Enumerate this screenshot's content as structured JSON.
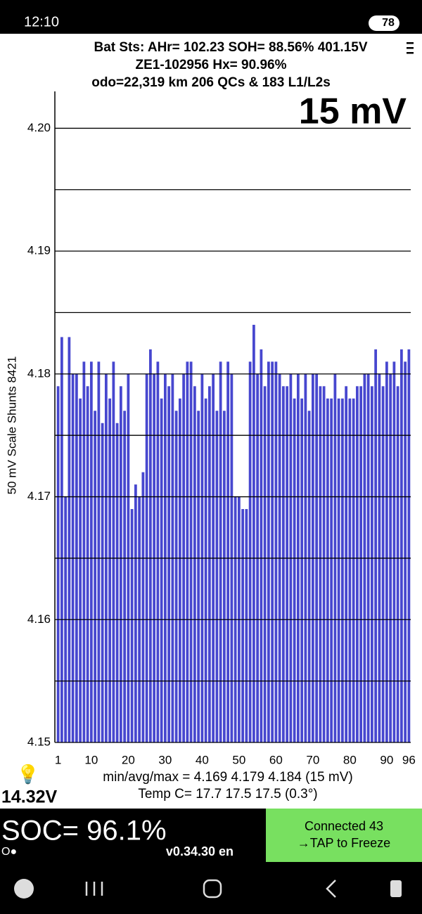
{
  "status_bar": {
    "time": "12:10",
    "battery": "78"
  },
  "header": {
    "line1": "Bat Sts:  AHr= 102.23  SOH= 88.56%   401.15V",
    "line2": "ZE1-102956   Hx= 90.96%",
    "line3": "odo=22,319 km  206 QCs & 183 L1/L2s"
  },
  "chart_data": {
    "type": "bar",
    "annotation": "15 mV",
    "y_label": "50 mV Scale   Shunts 8421",
    "color": "#4747cf",
    "grid": true,
    "x": [
      1,
      2,
      3,
      4,
      5,
      6,
      7,
      8,
      9,
      10,
      11,
      12,
      13,
      14,
      15,
      16,
      17,
      18,
      19,
      20,
      21,
      22,
      23,
      24,
      25,
      26,
      27,
      28,
      29,
      30,
      31,
      32,
      33,
      34,
      35,
      36,
      37,
      38,
      39,
      40,
      41,
      42,
      43,
      44,
      45,
      46,
      47,
      48,
      49,
      50,
      51,
      52,
      53,
      54,
      55,
      56,
      57,
      58,
      59,
      60,
      61,
      62,
      63,
      64,
      65,
      66,
      67,
      68,
      69,
      70,
      71,
      72,
      73,
      74,
      75,
      76,
      77,
      78,
      79,
      80,
      81,
      82,
      83,
      84,
      85,
      86,
      87,
      88,
      89,
      90,
      91,
      92,
      93,
      94,
      95,
      96
    ],
    "values": [
      4.179,
      4.183,
      4.17,
      4.183,
      4.18,
      4.18,
      4.178,
      4.181,
      4.179,
      4.181,
      4.177,
      4.181,
      4.176,
      4.18,
      4.178,
      4.181,
      4.176,
      4.179,
      4.177,
      4.18,
      4.169,
      4.171,
      4.17,
      4.172,
      4.18,
      4.182,
      4.18,
      4.181,
      4.178,
      4.18,
      4.179,
      4.18,
      4.177,
      4.178,
      4.18,
      4.181,
      4.181,
      4.179,
      4.177,
      4.18,
      4.178,
      4.179,
      4.18,
      4.177,
      4.181,
      4.177,
      4.181,
      4.18,
      4.17,
      4.17,
      4.169,
      4.169,
      4.181,
      4.184,
      4.18,
      4.182,
      4.179,
      4.181,
      4.181,
      4.181,
      4.18,
      4.179,
      4.179,
      4.18,
      4.178,
      4.18,
      4.178,
      4.18,
      4.177,
      4.18,
      4.18,
      4.179,
      4.179,
      4.178,
      4.178,
      4.18,
      4.178,
      4.178,
      4.179,
      4.178,
      4.178,
      4.179,
      4.179,
      4.18,
      4.18,
      4.179,
      4.182,
      4.18,
      4.179,
      4.181,
      4.18,
      4.181,
      4.179,
      4.182,
      4.181,
      4.182
    ],
    "xlim": [
      0.5,
      96.5
    ],
    "xticks": [
      1,
      10,
      20,
      30,
      40,
      50,
      60,
      70,
      80,
      90,
      96
    ],
    "ylim": [
      4.15,
      4.203
    ],
    "yticks": [
      {
        "value": 4.2,
        "label": "4.20"
      },
      4.19,
      4.18,
      4.17,
      4.16,
      4.15
    ],
    "minor_yticks": [
      4.195,
      4.185,
      4.175,
      4.165,
      4.155
    ]
  },
  "footer": {
    "stats": "min/avg/max = 4.169 4.179 4.184  (15 mV)",
    "temp": "Temp C= 17.7  17.5  17.5  (0.3°)",
    "aux_voltage": "14.32V",
    "soc": "SOC= 96.1%",
    "indicator": "O●",
    "version": "v0.34.30 en",
    "connected": "Connected 43",
    "tap": "→TAP to Freeze"
  }
}
